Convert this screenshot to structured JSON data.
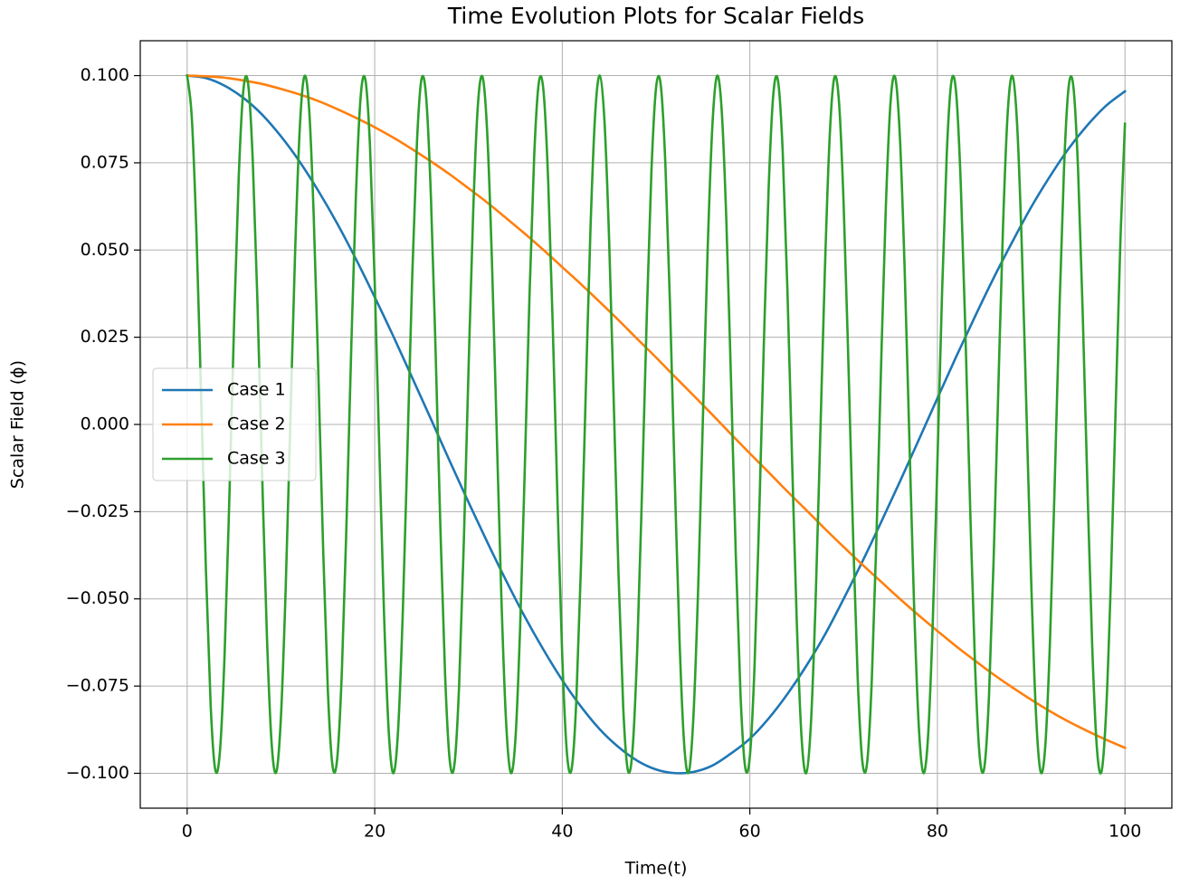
{
  "chart_data": {
    "type": "line",
    "title": "Time Evolution Plots for Scalar Fields",
    "x_label": "Time(t)",
    "y_label": "Scalar Field (ϕ)",
    "xlim": [
      -5,
      105
    ],
    "xticks": [
      0,
      20,
      40,
      60,
      80,
      100
    ],
    "ylim": [
      -0.11,
      0.11
    ],
    "yticks": [
      {
        "value": -0.1,
        "label": "−0.100"
      },
      {
        "value": -0.075,
        "label": "−0.075"
      },
      {
        "value": -0.05,
        "label": "−0.050"
      },
      {
        "value": -0.025,
        "label": "−0.025"
      },
      {
        "value": 0,
        "label": "0.000"
      },
      {
        "value": 0.025,
        "label": "0.025"
      },
      {
        "value": 0.05,
        "label": "0.050"
      },
      {
        "value": 0.075,
        "label": "0.075"
      },
      {
        "value": 0.1,
        "label": "0.100"
      }
    ],
    "grid": true,
    "legend": "center left",
    "series": [
      {
        "name": "Case 1",
        "color": "#1f77b4",
        "x": [
          0,
          2,
          4,
          6,
          8,
          10,
          12,
          14,
          16,
          18,
          20,
          22,
          24,
          26,
          28,
          30,
          32,
          34,
          36,
          38,
          40,
          42,
          44,
          46,
          48,
          50,
          52,
          54,
          56,
          58,
          60,
          62,
          64,
          66,
          68,
          70,
          72,
          74,
          76,
          78,
          80,
          82,
          84,
          86,
          88,
          90,
          92,
          94,
          96,
          98,
          100
        ],
        "values": [
          0.1,
          0.0993,
          0.0971,
          0.0936,
          0.0888,
          0.0826,
          0.0753,
          0.0669,
          0.0576,
          0.0474,
          0.0365,
          0.0252,
          0.0134,
          0.0015,
          -0.0105,
          -0.0223,
          -0.0337,
          -0.0447,
          -0.0551,
          -0.0646,
          -0.0733,
          -0.0809,
          -0.0874,
          -0.0925,
          -0.0964,
          -0.0989,
          -0.09995,
          -0.0996,
          -0.0978,
          -0.0943,
          -0.0901,
          -0.0843,
          -0.0773,
          -0.0693,
          -0.0603,
          -0.05,
          -0.0393,
          -0.028,
          -0.0164,
          -0.0045,
          0.0075,
          0.0194,
          0.0309,
          0.042,
          0.0524,
          0.0623,
          0.0711,
          0.0791,
          0.0858,
          0.0914,
          0.0955
        ]
      },
      {
        "name": "Case 2",
        "color": "#ff7f0e",
        "x": [
          0,
          2,
          4,
          6,
          8,
          10,
          12,
          14,
          16,
          18,
          20,
          22,
          24,
          26,
          28,
          30,
          32,
          34,
          36,
          38,
          40,
          42,
          44,
          46,
          48,
          50,
          52,
          54,
          56,
          58,
          60,
          62,
          64,
          66,
          68,
          70,
          72,
          74,
          76,
          78,
          80,
          82,
          84,
          86,
          88,
          90,
          92,
          94,
          96,
          98,
          100
        ],
        "values": [
          0.1,
          0.0998,
          0.0994,
          0.0986,
          0.0976,
          0.0962,
          0.0946,
          0.0927,
          0.0904,
          0.0879,
          0.0852,
          0.0822,
          0.0789,
          0.0754,
          0.0717,
          0.0677,
          0.0636,
          0.0592,
          0.0547,
          0.05,
          0.0451,
          0.0402,
          0.0351,
          0.0299,
          0.0245,
          0.0192,
          0.0137,
          0.0083,
          0.0028,
          -0.0028,
          -0.0083,
          -0.0137,
          -0.0192,
          -0.0245,
          -0.0299,
          -0.0351,
          -0.0402,
          -0.0451,
          -0.05,
          -0.0547,
          -0.0592,
          -0.0636,
          -0.0677,
          -0.0717,
          -0.0754,
          -0.0789,
          -0.0822,
          -0.0852,
          -0.0879,
          -0.0904,
          -0.0927
        ]
      },
      {
        "name": "Case 3",
        "color": "#2ca02c",
        "x": [
          0,
          0.5,
          1,
          1.5,
          2,
          2.5,
          3,
          3.5,
          4,
          4.5,
          5,
          5.5,
          6,
          6.5,
          7,
          7.5,
          8,
          8.5,
          9,
          9.5,
          10,
          10.5,
          11,
          11.5,
          12,
          12.5,
          13,
          13.5,
          14,
          14.5,
          15,
          15.5,
          16,
          16.5,
          17,
          17.5,
          18,
          18.5,
          19,
          19.5,
          20,
          20.5,
          21,
          21.5,
          22,
          22.5,
          23,
          23.5,
          24,
          24.5,
          25,
          25.5,
          26,
          26.5,
          27,
          27.5,
          28,
          28.5,
          29,
          29.5,
          30,
          30.5,
          31,
          31.5,
          32,
          32.5,
          33,
          33.5,
          34,
          34.5,
          35,
          35.5,
          36,
          36.5,
          37,
          37.5,
          38,
          38.5,
          39,
          39.5,
          40,
          40.5,
          41,
          41.5,
          42,
          42.5,
          43,
          43.5,
          44,
          44.5,
          45,
          45.5,
          46,
          46.5,
          47,
          47.5,
          48,
          48.5,
          49,
          49.5,
          50,
          50.5,
          51,
          51.5,
          52,
          52.5,
          53,
          53.5,
          54,
          54.5,
          55,
          55.5,
          56,
          56.5,
          57,
          57.5,
          58,
          58.5,
          59,
          59.5,
          60,
          60.5,
          61,
          61.5,
          62,
          62.5,
          63,
          63.5,
          64,
          64.5,
          65,
          65.5,
          66,
          66.5,
          67,
          67.5,
          68,
          68.5,
          69,
          69.5,
          70,
          70.5,
          71,
          71.5,
          72,
          72.5,
          73,
          73.5,
          74,
          74.5,
          75,
          75.5,
          76,
          76.5,
          77,
          77.5,
          78,
          78.5,
          79,
          79.5,
          80,
          80.5,
          81,
          81.5,
          82,
          82.5,
          83,
          83.5,
          84,
          84.5,
          85,
          85.5,
          86,
          86.5,
          87,
          87.5,
          88,
          88.5,
          89,
          89.5,
          90,
          90.5,
          91,
          91.5,
          92,
          92.5,
          93,
          93.5,
          94,
          94.5,
          95,
          95.5,
          96,
          96.5,
          97,
          97.5,
          98,
          98.5,
          99,
          99.5,
          100
        ],
        "values": [
          0.1,
          0.0878,
          0.054,
          0.0071,
          -0.0416,
          -0.0801,
          -0.099,
          -0.0936,
          -0.0654,
          -0.0211,
          0.0284,
          0.0709,
          0.096,
          0.0977,
          0.0754,
          0.0347,
          -0.0146,
          -0.0602,
          -0.0911,
          -0.0997,
          -0.0839,
          -0.0476,
          0.0004,
          0.0483,
          0.0844,
          0.0998,
          0.0907,
          0.0594,
          0.0137,
          -0.0355,
          -0.076,
          -0.0978,
          -0.0958,
          -0.0706,
          -0.0275,
          0.022,
          0.066,
          0.0939,
          0.0989,
          0.0796,
          0.0408,
          -0.008,
          -0.0548,
          -0.0882,
          -0.1,
          -0.0873,
          -0.0533,
          -0.0062,
          0.0424,
          0.0806,
          0.0991,
          0.0933,
          0.0647,
          0.0202,
          -0.0292,
          -0.0715,
          -0.0963,
          -0.0975,
          -0.0748,
          -0.0338,
          0.0154,
          0.0608,
          0.0915,
          0.0996,
          0.0834,
          0.0468,
          -0.0013,
          -0.0491,
          -0.0848,
          -0.0998,
          -0.0904,
          -0.0586,
          -0.0128,
          0.0364,
          0.0766,
          0.098,
          0.0955,
          0.0696,
          0.0267,
          -0.0228,
          -0.0667,
          -0.0943,
          -0.0987,
          -0.079,
          -0.04,
          0.0088,
          0.0555,
          0.0886,
          0.1,
          0.0869,
          0.0525,
          0.0053,
          -0.0432,
          -0.0812,
          -0.0992,
          -0.093,
          -0.064,
          -0.0194,
          0.03,
          0.0721,
          0.0965,
          0.0973,
          0.0742,
          0.033,
          -0.0163,
          -0.0616,
          -0.0918,
          -0.0996,
          -0.0829,
          -0.046,
          0.0022,
          0.0499,
          0.0853,
          0.0999,
          0.09,
          0.058,
          0.0119,
          -0.0372,
          -0.0771,
          -0.0982,
          -0.0952,
          -0.0694,
          -0.0258,
          0.0237,
          0.0673,
          0.0945,
          0.0986,
          0.0785,
          0.0392,
          -0.0097,
          -0.0562,
          -0.089,
          -0.1,
          -0.0864,
          -0.0518,
          -0.0044,
          0.044,
          0.0817,
          0.0993,
          0.0927,
          0.0633,
          0.0185,
          -0.0309,
          -0.0727,
          -0.0967,
          -0.0971,
          -0.0736,
          -0.0322,
          0.0172,
          0.0622,
          0.0922,
          0.0995,
          0.0824,
          0.0452,
          -0.0031,
          -0.0506,
          -0.0857,
          -0.0999,
          -0.0896,
          -0.0572,
          -0.011,
          0.038,
          0.0777,
          0.0984,
          0.095,
          0.0683,
          0.0249,
          -0.0245,
          -0.068,
          -0.0949,
          -0.0984,
          -0.0779,
          -0.0383,
          0.0106,
          0.057,
          0.0895,
          0.0999,
          0.086,
          0.051,
          0.0035,
          -0.0448,
          -0.0823,
          -0.0995,
          -0.0923,
          -0.0625,
          -0.0177,
          0.0316,
          0.0733,
          0.0969,
          0.0968,
          0.073,
          0.0313,
          -0.018,
          -0.063,
          -0.0925,
          -0.0995,
          -0.0819,
          -0.0444,
          0.0039,
          0.0514,
          0.0862
        ]
      }
    ]
  }
}
